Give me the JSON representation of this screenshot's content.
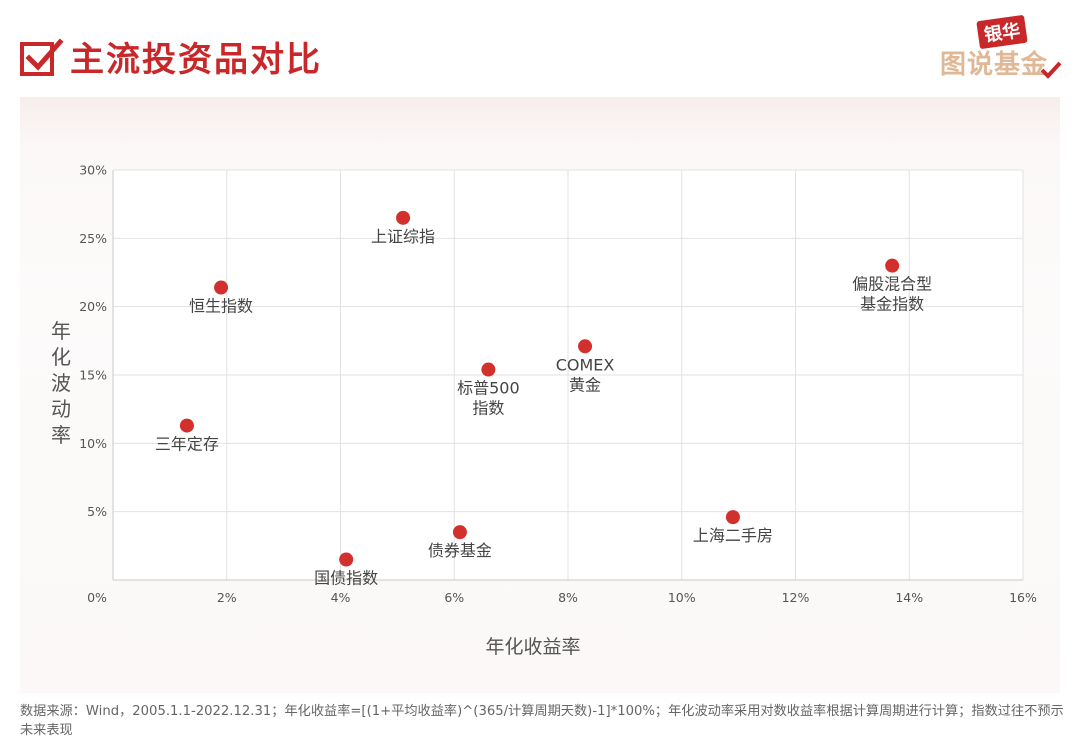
{
  "header": {
    "title": "主流投资品对比"
  },
  "logo": {
    "line1": "银华",
    "line2": "图说基金"
  },
  "colors": {
    "accent": "#c8282a",
    "point": "#d2302c"
  },
  "chart_data": {
    "type": "scatter",
    "title": "",
    "xlabel": "年化收益率",
    "ylabel": "年化波动率",
    "xlim": [
      0,
      16
    ],
    "ylim": [
      0,
      30
    ],
    "x_ticks": [
      0,
      2,
      4,
      6,
      8,
      10,
      12,
      14,
      16
    ],
    "y_ticks": [
      5,
      10,
      15,
      20,
      25,
      30
    ],
    "x_tick_labels": [
      "0%",
      "2%",
      "4%",
      "6%",
      "8%",
      "10%",
      "12%",
      "14%",
      "16%"
    ],
    "y_tick_labels": [
      "5%",
      "10%",
      "15%",
      "20%",
      "25%",
      "30%"
    ],
    "grid": true,
    "points": [
      {
        "label": "上证综指",
        "x": 5.1,
        "y": 26.5,
        "label_pos": "below"
      },
      {
        "label": "恒生指数",
        "x": 1.9,
        "y": 21.4,
        "label_pos": "below"
      },
      {
        "label": "偏股混合型基金指数",
        "x": 13.7,
        "y": 23.0,
        "label_pos": "below"
      },
      {
        "label": "COMEX黄金",
        "x": 8.3,
        "y": 17.1,
        "label_pos": "below"
      },
      {
        "label": "标普500指数",
        "x": 6.6,
        "y": 15.4,
        "label_pos": "below"
      },
      {
        "label": "三年定存",
        "x": 1.3,
        "y": 11.3,
        "label_pos": "below"
      },
      {
        "label": "上海二手房",
        "x": 10.9,
        "y": 4.6,
        "label_pos": "below"
      },
      {
        "label": "债券基金",
        "x": 6.1,
        "y": 3.5,
        "label_pos": "below"
      },
      {
        "label": "国债指数",
        "x": 4.1,
        "y": 1.5,
        "label_pos": "below"
      }
    ]
  },
  "footnote": "数据来源：Wind，2005.1.1-2022.12.31；年化收益率=[(1+平均收益率)^(365/计算周期天数)-1]*100%；年化波动率采用对数收益率根据计算周期进行计算；指数过往不预示未来表现"
}
